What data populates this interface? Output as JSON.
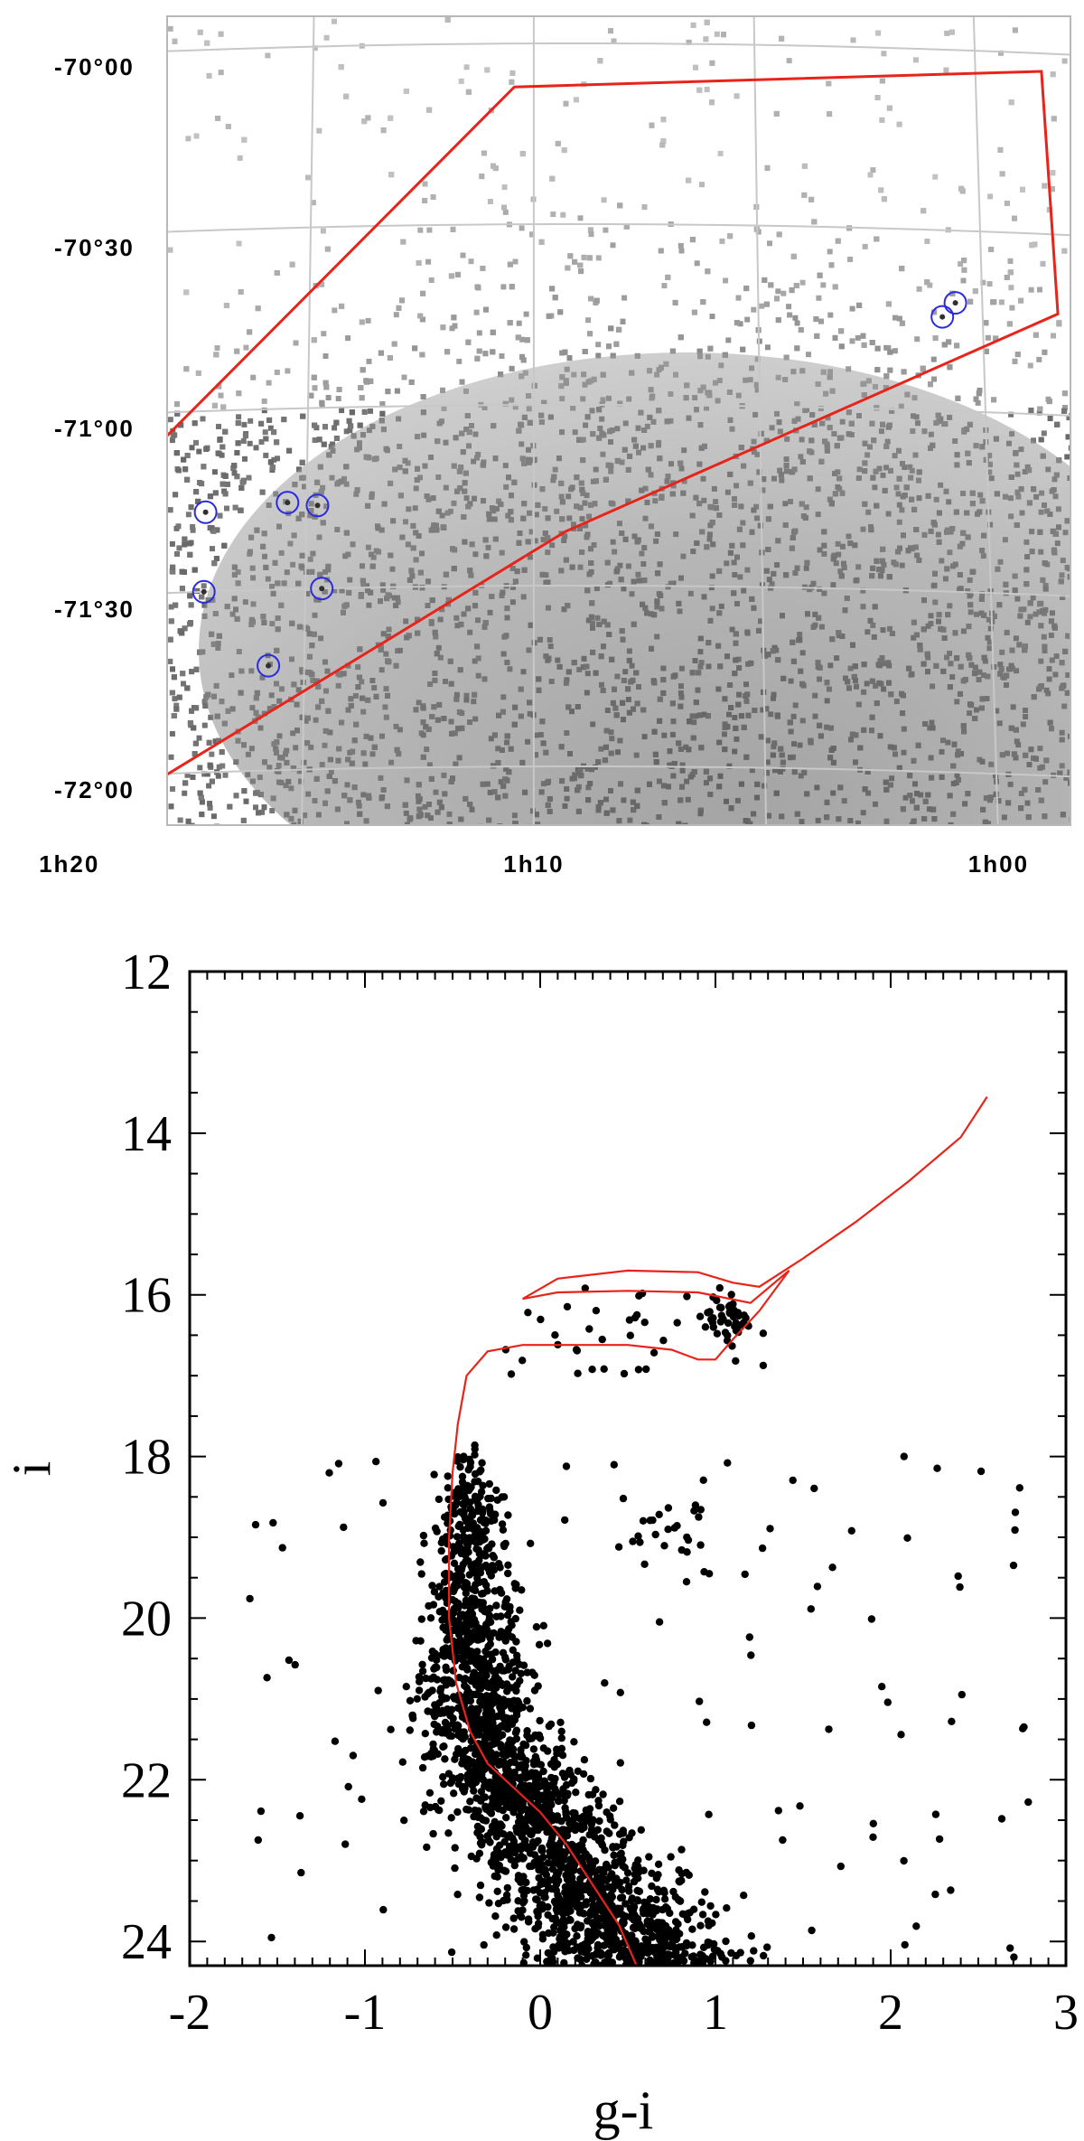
{
  "chart_data": [
    {
      "type": "scatter",
      "panel": "sky-map",
      "background": "greyscale stellar density map with grey points in sparse outer regions",
      "xlabel": "",
      "ylabel": "",
      "x_tick_labels": [
        "1h20",
        "1h10",
        "1h00"
      ],
      "y_tick_labels": [
        "-70°00",
        "-70°30",
        "-71°00",
        "-71°30",
        "-72°00"
      ],
      "grid": true,
      "region_polygon": {
        "color": "#e8231a",
        "vertices_ra_h_dec_deg": [
          [
            1.352,
            -71.44
          ],
          [
            1.347,
            -72.04
          ],
          [
            1.305,
            -72.03
          ],
          [
            1.155,
            -71.35
          ],
          [
            0.972,
            -70.72
          ],
          [
            0.975,
            -70.05
          ],
          [
            1.174,
            -70.12
          ]
        ]
      },
      "cluster_markers": {
        "color": "#2a2ae0",
        "ra_h_dec_deg": [
          [
            1.313,
            -71.27
          ],
          [
            1.287,
            -71.28
          ],
          [
            1.257,
            -71.26
          ],
          [
            1.246,
            -71.27
          ],
          [
            1.287,
            -71.5
          ],
          [
            1.244,
            -71.5
          ],
          [
            1.263,
            -71.71
          ],
          [
            1.015,
            -70.74
          ],
          [
            1.01,
            -70.7
          ]
        ]
      }
    },
    {
      "type": "scatter",
      "panel": "colour-magnitude-diagram",
      "title": "",
      "xlabel": "g-i",
      "ylabel": "i",
      "xlim": [
        -2,
        3
      ],
      "ylim": [
        24.3,
        12
      ],
      "x_ticks": [
        "-2",
        "-1",
        "0",
        "1",
        "2",
        "3"
      ],
      "y_ticks": [
        "12",
        "14",
        "16",
        "18",
        "20",
        "22",
        "24"
      ],
      "point_color": "#000000",
      "isochrone": {
        "color": "#e8231a",
        "g_i": [
          0.55,
          0.45,
          0.3,
          0.15,
          0.0,
          -0.15,
          -0.3,
          -0.4,
          -0.48,
          -0.52,
          -0.52,
          -0.5,
          -0.47,
          -0.42,
          -0.3,
          -0.1,
          0.2,
          0.5,
          0.75,
          0.9,
          1.0,
          1.1,
          1.25,
          1.42,
          1.2,
          0.9,
          0.5,
          0.1,
          -0.1,
          0.1,
          0.5,
          0.9,
          1.1,
          1.25,
          1.5,
          1.8,
          2.1,
          2.4,
          2.55
        ],
        "i": [
          24.3,
          23.8,
          23.3,
          22.8,
          22.4,
          22.1,
          21.8,
          21.4,
          20.8,
          20.0,
          19.0,
          18.2,
          17.6,
          17.0,
          16.7,
          16.62,
          16.62,
          16.62,
          16.68,
          16.8,
          16.8,
          16.55,
          16.2,
          15.7,
          16.1,
          15.97,
          15.95,
          15.97,
          16.05,
          15.8,
          15.7,
          15.72,
          15.85,
          15.9,
          15.55,
          15.1,
          14.6,
          14.05,
          13.55
        ]
      },
      "stars_note": "Approx. 2200 stars; dense main sequence from g-i about -0.6 at i=18 to about 0.5 at i=24, red clump near (1.1, 16.2), sparse field stars."
    }
  ]
}
